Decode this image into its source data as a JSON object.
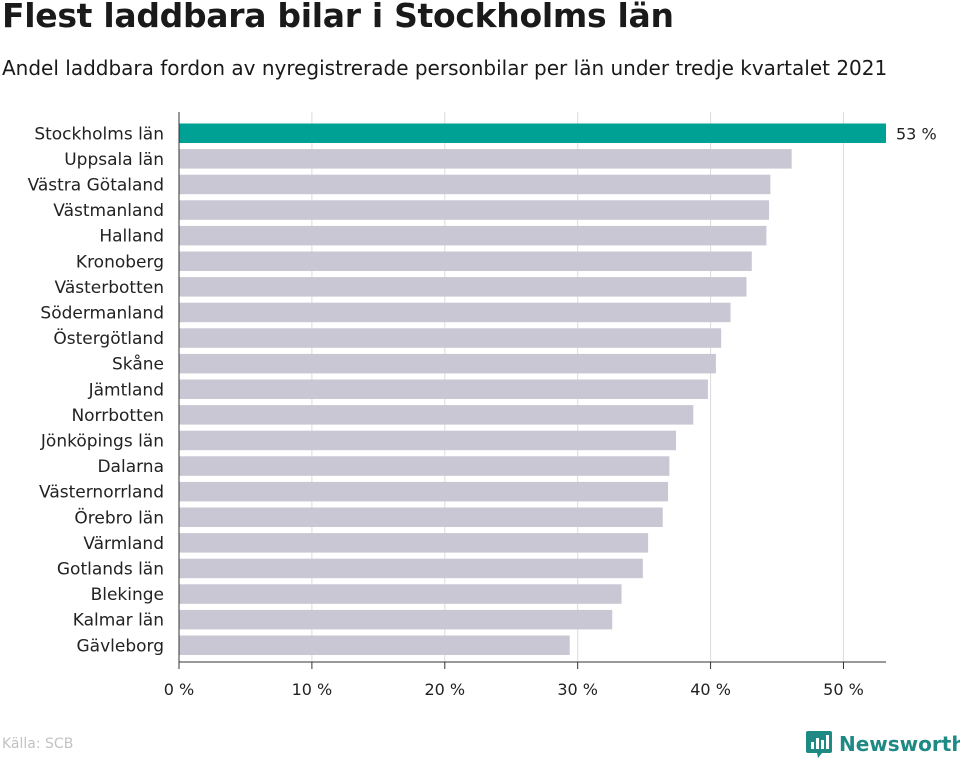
{
  "header": {
    "title": "Flest laddbara bilar i Stockholms län",
    "subtitle": "Andel laddbara fordon av nyregistrerade personbilar per län under tredje kvartalet 2021"
  },
  "footer": {
    "source": "Källa: SCB",
    "brand": "Newsworthy",
    "brand_icon": "bar-chart-logo-icon"
  },
  "colors": {
    "highlight": "#00a195",
    "bar": "#c8c7d3",
    "grid": "#dcdcdc",
    "axis": "#333333",
    "brand": "#1f8a84"
  },
  "chart_data": {
    "type": "bar",
    "orientation": "horizontal",
    "title": "Flest laddbara bilar i Stockholms län",
    "subtitle": "Andel laddbara fordon av nyregistrerade personbilar per län under tredje kvartalet 2021",
    "categories": [
      "Stockholms län",
      "Uppsala län",
      "Västra Götaland",
      "Västmanland",
      "Halland",
      "Kronoberg",
      "Västerbotten",
      "Södermanland",
      "Östergötland",
      "Skåne",
      "Jämtland",
      "Norrbotten",
      "Jönköpings län",
      "Dalarna",
      "Västernorrland",
      "Örebro län",
      "Värmland",
      "Gotlands län",
      "Blekinge",
      "Kalmar län",
      "Gävleborg"
    ],
    "values": [
      53.2,
      46.1,
      44.5,
      44.4,
      44.2,
      43.1,
      42.7,
      41.5,
      40.8,
      40.4,
      39.8,
      38.7,
      37.4,
      36.9,
      36.8,
      36.4,
      35.3,
      34.9,
      33.3,
      32.6,
      29.4
    ],
    "highlight_index": 0,
    "data_labels": [
      {
        "index": 0,
        "text": "53 %"
      }
    ],
    "xlim": [
      0,
      53.2
    ],
    "xticks": [
      0,
      10,
      20,
      30,
      40,
      50
    ],
    "xtick_labels": [
      "0 %",
      "10 %",
      "20 %",
      "30 %",
      "40 %",
      "50 %"
    ],
    "grid": true
  }
}
